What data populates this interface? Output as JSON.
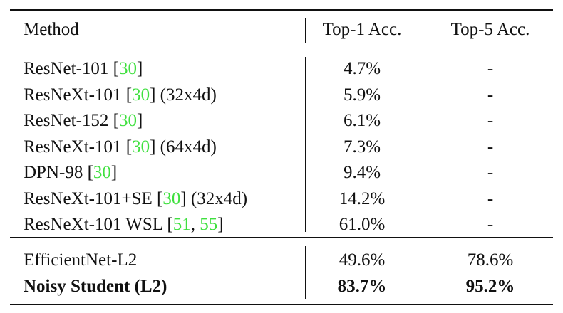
{
  "header": [
    "Method",
    "Top-1 Acc.",
    "Top-5 Acc."
  ],
  "groups": [
    [
      {
        "method": [
          {
            "text": "ResNet-101 ["
          },
          {
            "cite": "30"
          },
          {
            "text": "]"
          }
        ],
        "top1": "4.7%",
        "top5": "-"
      },
      {
        "method": [
          {
            "text": "ResNeXt-101 ["
          },
          {
            "cite": "30"
          },
          {
            "text": "] (32x4d)"
          }
        ],
        "top1": "5.9%",
        "top5": "-"
      },
      {
        "method": [
          {
            "text": "ResNet-152 ["
          },
          {
            "cite": "30"
          },
          {
            "text": "]"
          }
        ],
        "top1": "6.1%",
        "top5": "-"
      },
      {
        "method": [
          {
            "text": "ResNeXt-101 ["
          },
          {
            "cite": "30"
          },
          {
            "text": "] (64x4d)"
          }
        ],
        "top1": "7.3%",
        "top5": "-"
      },
      {
        "method": [
          {
            "text": "DPN-98 ["
          },
          {
            "cite": "30"
          },
          {
            "text": "]"
          }
        ],
        "top1": "9.4%",
        "top5": "-"
      },
      {
        "method": [
          {
            "text": "ResNeXt-101+SE ["
          },
          {
            "cite": "30"
          },
          {
            "text": "] (32x4d)"
          }
        ],
        "top1": "14.2%",
        "top5": "-"
      },
      {
        "method": [
          {
            "text": "ResNeXt-101 WSL ["
          },
          {
            "cite": "51"
          },
          {
            "text": ", "
          },
          {
            "cite": "55"
          },
          {
            "text": "]"
          }
        ],
        "top1": "61.0%",
        "top5": "-"
      }
    ],
    [
      {
        "method": [
          {
            "text": "EfficientNet-L2"
          }
        ],
        "top1": "49.6%",
        "top5": "78.6%"
      },
      {
        "method": [
          {
            "text": "Noisy Student (L2)"
          }
        ],
        "top1": "83.7%",
        "top5": "95.2%",
        "bold": true
      }
    ]
  ]
}
